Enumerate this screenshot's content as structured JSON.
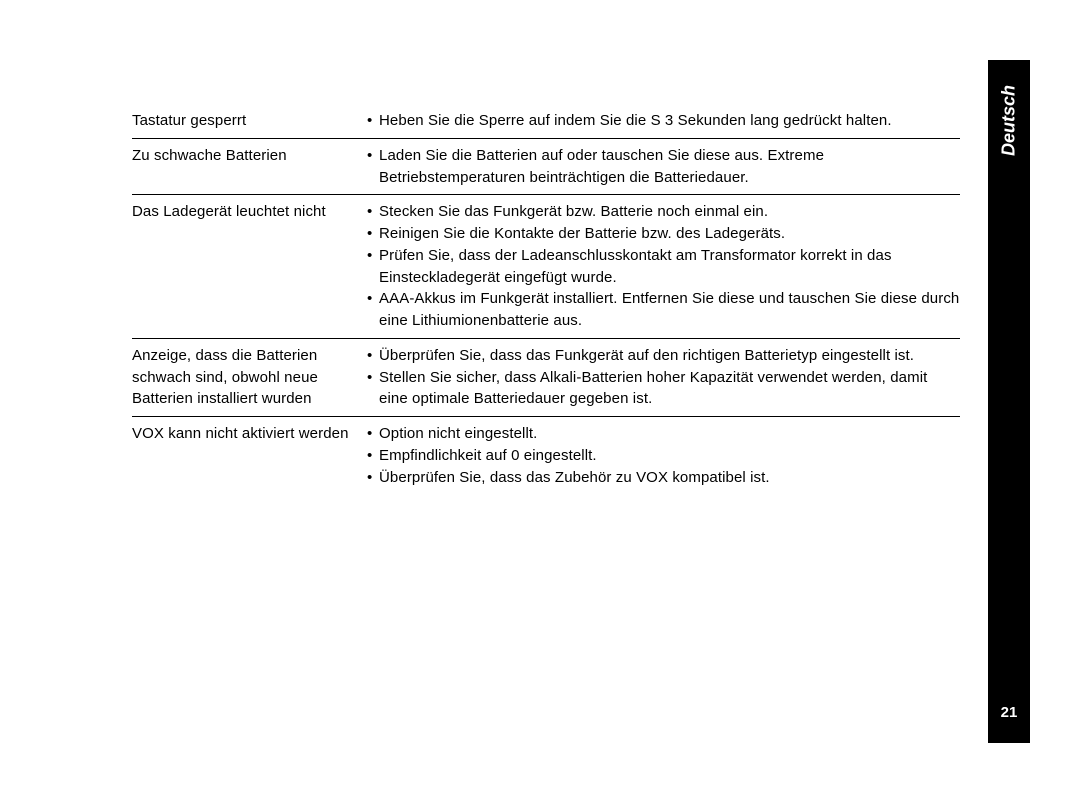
{
  "sidebar": {
    "language": "Deutsch",
    "page_number": "21"
  },
  "table": {
    "rows": [
      {
        "issue": "Tastatur gesperrt",
        "solutions": [
          "Heben Sie die Sperre auf indem Sie die S 3 Sekunden lang gedrückt halten."
        ],
        "separator": true
      },
      {
        "issue": "Zu schwache Batterien",
        "solutions": [
          "Laden Sie die Batterien auf oder tauschen Sie diese aus. Extreme Betriebstemperaturen beinträchtigen die Batteriedauer."
        ],
        "separator": true
      },
      {
        "issue": "Das Ladegerät leuchtet nicht",
        "solutions": [
          "Stecken Sie das Funkgerät bzw. Batterie noch einmal ein.",
          "Reinigen Sie die Kontakte der Batterie bzw. des Ladegeräts.",
          "Prüfen Sie, dass der Ladeanschlusskontakt am Transformator korrekt in das Einsteckladegerät eingefügt wurde.",
          "AAA-Akkus im Funkgerät installiert. Entfernen Sie diese und tauschen Sie diese durch eine Lithiumionenbatterie aus."
        ],
        "separator": true
      },
      {
        "issue": "Anzeige, dass die Batterien schwach sind, obwohl neue Batterien installiert wurden",
        "solutions": [
          "Überprüfen Sie, dass das Funkgerät auf den richtigen Batterietyp eingestellt ist.",
          "Stellen Sie sicher, dass Alkali-Batterien hoher Kapazität verwendet werden, damit eine optimale Batteriedauer gegeben ist."
        ],
        "separator": true
      },
      {
        "issue": "VOX kann nicht aktiviert werden",
        "solutions": [
          "Option nicht eingestellt.",
          "Empfindlichkeit auf 0 eingestellt.",
          "Überprüfen Sie, dass das Zubehör zu VOX kompatibel ist."
        ],
        "separator": false
      }
    ]
  }
}
